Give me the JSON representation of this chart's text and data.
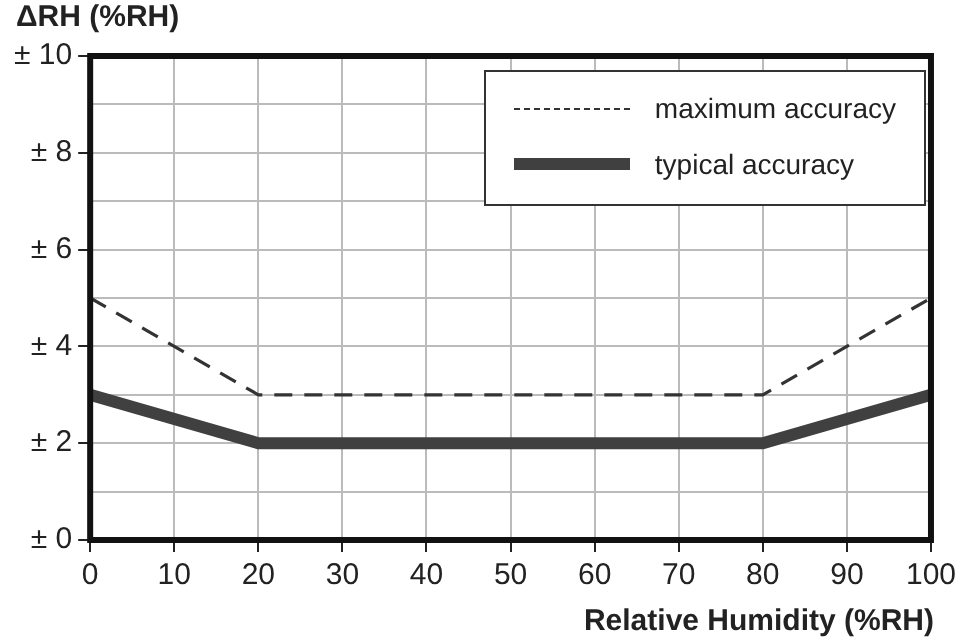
{
  "chart_data": {
    "type": "line",
    "ylabel": "ΔRH (%RH)",
    "xlabel": "Relative Humidity (%RH)",
    "x": [
      0,
      20,
      80,
      100
    ],
    "series": [
      {
        "name": "maximum accuracy",
        "color": "#333333",
        "values": [
          5,
          3,
          3,
          5
        ],
        "line_style": "dashed"
      },
      {
        "name": "typical accuracy",
        "color": "#404040",
        "values": [
          3,
          2,
          2,
          3
        ],
        "line_style": "solid"
      }
    ],
    "xlim": [
      0,
      100
    ],
    "xticks": [
      0,
      10,
      20,
      30,
      40,
      50,
      60,
      70,
      80,
      90,
      100
    ],
    "ylim": [
      0,
      10
    ],
    "yticks": [
      {
        "value": 0,
        "label": "± 0"
      },
      {
        "value": 1,
        "label": null
      },
      {
        "value": 2,
        "label": "± 2"
      },
      {
        "value": 3,
        "label": null
      },
      {
        "value": 4,
        "label": "± 4"
      },
      {
        "value": 5,
        "label": null
      },
      {
        "value": 6,
        "label": "± 6"
      },
      {
        "value": 7,
        "label": null
      },
      {
        "value": 8,
        "label": "± 8"
      },
      {
        "value": 9,
        "label": null
      },
      {
        "value": 10,
        "label": "± 10"
      }
    ],
    "grid": true,
    "legend": "top right",
    "marker": "none"
  }
}
